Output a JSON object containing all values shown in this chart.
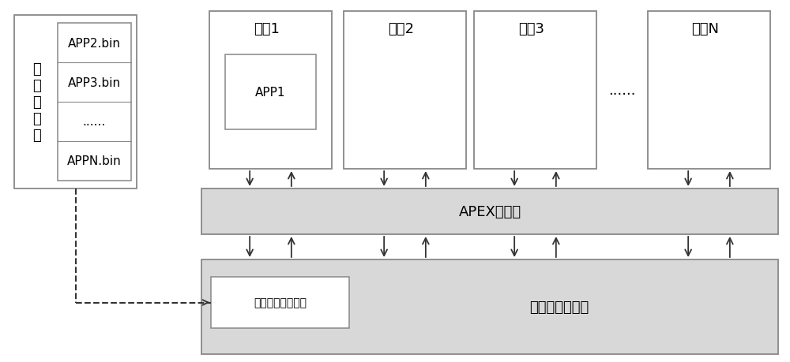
{
  "bg_color": "#ffffff",
  "box_edge_color": "#888888",
  "box_fill_color": "#ffffff",
  "light_gray_fill": "#d8d8d8",
  "label_font_size": 13,
  "small_font_size": 11,
  "ext_storage_label": "外\n部\n存\n储\n器",
  "ext_storage_items": [
    "APP2.bin",
    "APP3.bin",
    "......",
    "APPN.bin"
  ],
  "partitions": [
    "分区1",
    "分区2",
    "分区3",
    "分区N"
  ],
  "partition_app": "APP1",
  "dots": "......",
  "apex_label": "APEX接口层",
  "core_label": "核心操作系统层",
  "loader_label": "多分区应用加载器",
  "arrow_color": "#333333"
}
